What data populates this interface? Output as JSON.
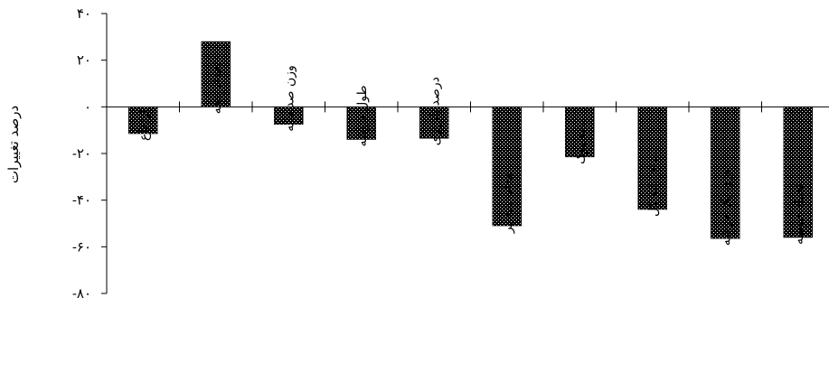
{
  "chart_data": {
    "type": "bar",
    "ylabel": "درصد تغییرات",
    "ylim": [
      -80,
      40
    ],
    "yticks": [
      40,
      20,
      0,
      -20,
      -40,
      -60,
      -80
    ],
    "ytick_labels": [
      "۴۰",
      "۲۰",
      "۰",
      "-۲۰",
      "-۴۰",
      "-۶۰",
      "-۸۰"
    ],
    "categories": [
      "ارتفاع",
      "تعداد پنجه",
      "وزن صد دانه",
      "طول خوشه",
      "درصد باروری",
      "تعداد دانه پر",
      "دانه پوک",
      "تعداد دانه کل",
      "وزن یک خوشه",
      "تعداد خوشه"
    ],
    "values": [
      -11.5,
      28,
      -7.5,
      -14,
      -13.5,
      -51,
      -21.5,
      -44,
      -56.5,
      -56
    ],
    "bar_color": "#000000",
    "bar_pattern": "white-dots",
    "grid": false,
    "legend": "none"
  }
}
